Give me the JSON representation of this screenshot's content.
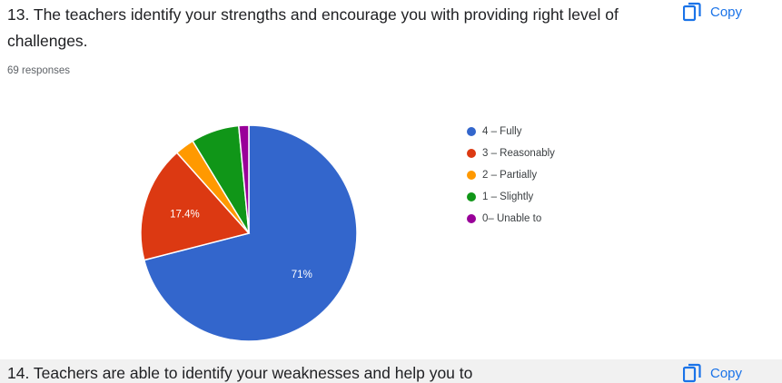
{
  "question": {
    "title": "13. The teachers identify your strengths and encourage you with providing right level of challenges.",
    "responses": "69 responses",
    "copy_label": "Copy"
  },
  "next_question": {
    "title": "14. Teachers are able to identify your weaknesses and help you to",
    "copy_label": "Copy"
  },
  "chart_data": {
    "type": "pie",
    "title": "",
    "series": [
      {
        "label": "4 – Fully",
        "value": 71.0,
        "color": "#3366cc",
        "shown_label": "71%"
      },
      {
        "label": "3 – Reasonably",
        "value": 17.4,
        "color": "#dc3912",
        "shown_label": "17.4%"
      },
      {
        "label": "2 – Partially",
        "value": 2.9,
        "color": "#ff9900",
        "shown_label": ""
      },
      {
        "label": "1 – Slightly",
        "value": 7.2,
        "color": "#109618",
        "shown_label": ""
      },
      {
        "label": "0– Unable to",
        "value": 1.5,
        "color": "#990099",
        "shown_label": ""
      }
    ],
    "legend_position": "right"
  }
}
